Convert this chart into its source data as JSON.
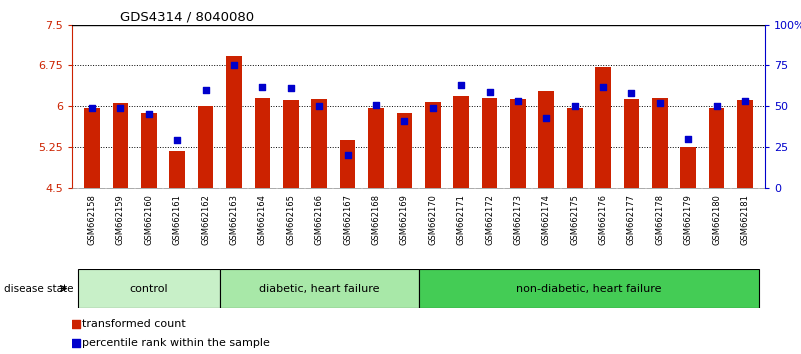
{
  "title": "GDS4314 / 8040080",
  "samples": [
    "GSM662158",
    "GSM662159",
    "GSM662160",
    "GSM662161",
    "GSM662162",
    "GSM662163",
    "GSM662164",
    "GSM662165",
    "GSM662166",
    "GSM662167",
    "GSM662168",
    "GSM662169",
    "GSM662170",
    "GSM662171",
    "GSM662172",
    "GSM662173",
    "GSM662174",
    "GSM662175",
    "GSM662176",
    "GSM662177",
    "GSM662178",
    "GSM662179",
    "GSM662180",
    "GSM662181"
  ],
  "red_values": [
    5.97,
    6.05,
    5.87,
    5.18,
    6.0,
    6.92,
    6.15,
    6.12,
    6.13,
    5.38,
    5.97,
    5.87,
    6.08,
    6.18,
    6.15,
    6.13,
    6.28,
    5.97,
    6.72,
    6.14,
    6.15,
    5.25,
    5.97,
    6.12
  ],
  "blue_pct": [
    49,
    49,
    45,
    29,
    60,
    75,
    62,
    61,
    50,
    20,
    51,
    41,
    49,
    63,
    59,
    53,
    43,
    50,
    62,
    58,
    52,
    30,
    50,
    53
  ],
  "groups": [
    {
      "label": "control",
      "start": 0,
      "end": 5,
      "color": "#c8f0c8"
    },
    {
      "label": "diabetic, heart failure",
      "start": 5,
      "end": 12,
      "color": "#a8e8a8"
    },
    {
      "label": "non-diabetic, heart failure",
      "start": 12,
      "end": 24,
      "color": "#44cc55"
    }
  ],
  "ylim_left": [
    4.5,
    7.5
  ],
  "ylim_right": [
    0,
    100
  ],
  "yticks_left": [
    4.5,
    5.25,
    6.0,
    6.75,
    7.5
  ],
  "ytick_labels_left": [
    "4.5",
    "5.25",
    "6",
    "6.75",
    "7.5"
  ],
  "yticks_right": [
    0,
    25,
    50,
    75,
    100
  ],
  "ytick_labels_right": [
    "0",
    "25",
    "50",
    "75",
    "100%"
  ],
  "hline_values": [
    5.25,
    6.0,
    6.75
  ],
  "bar_color": "#CC2200",
  "dot_color": "#0000CC",
  "bar_width": 0.55,
  "xtick_bg_color": "#c8c8c8",
  "legend_red": "transformed count",
  "legend_blue": "percentile rank within the sample",
  "disease_state_label": "disease state"
}
